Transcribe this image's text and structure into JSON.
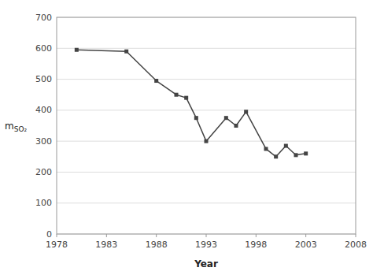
{
  "chart_data": {
    "type": "line",
    "x": [
      1980,
      1985,
      1988,
      1990,
      1991,
      1992,
      1993,
      1995,
      1996,
      1997,
      1999,
      2000,
      2001,
      2002,
      2003
    ],
    "values": [
      595,
      590,
      495,
      450,
      440,
      375,
      300,
      375,
      350,
      395,
      275,
      250,
      285,
      255,
      260
    ],
    "xlabel": "Year",
    "ylabel": "mSO₂",
    "xlim": [
      1978,
      2008
    ],
    "ylim": [
      0,
      700
    ],
    "xticks": [
      1978,
      1983,
      1988,
      1993,
      1998,
      2003,
      2008
    ],
    "yticks": [
      0,
      100,
      200,
      300,
      400,
      500,
      600,
      700
    ],
    "color": "#444444",
    "marker": "square",
    "grid": true
  }
}
